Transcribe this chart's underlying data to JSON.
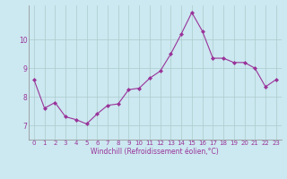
{
  "x": [
    0,
    1,
    2,
    3,
    4,
    5,
    6,
    7,
    8,
    9,
    10,
    11,
    12,
    13,
    14,
    15,
    16,
    17,
    18,
    19,
    20,
    21,
    22,
    23
  ],
  "y": [
    8.6,
    7.6,
    7.8,
    7.3,
    7.2,
    7.05,
    7.4,
    7.7,
    7.75,
    8.25,
    8.3,
    8.65,
    8.9,
    9.5,
    10.2,
    10.95,
    10.3,
    9.35,
    9.35,
    9.2,
    9.2,
    9.0,
    8.35,
    8.6
  ],
  "xlim": [
    -0.5,
    23.5
  ],
  "ylim": [
    6.5,
    11.2
  ],
  "yticks": [
    7,
    8,
    9,
    10
  ],
  "xticks": [
    0,
    1,
    2,
    3,
    4,
    5,
    6,
    7,
    8,
    9,
    10,
    11,
    12,
    13,
    14,
    15,
    16,
    17,
    18,
    19,
    20,
    21,
    22,
    23
  ],
  "xlabel": "Windchill (Refroidissement éolien,°C)",
  "line_color": "#993399",
  "marker": "D",
  "marker_size": 2.0,
  "line_width": 0.8,
  "bg_color": "#cce8f0",
  "grid_color": "#aacccc",
  "tick_color": "#993399",
  "label_color": "#993399",
  "spine_color": "#888888",
  "tick_fontsize": 5.0,
  "label_fontsize": 5.5
}
